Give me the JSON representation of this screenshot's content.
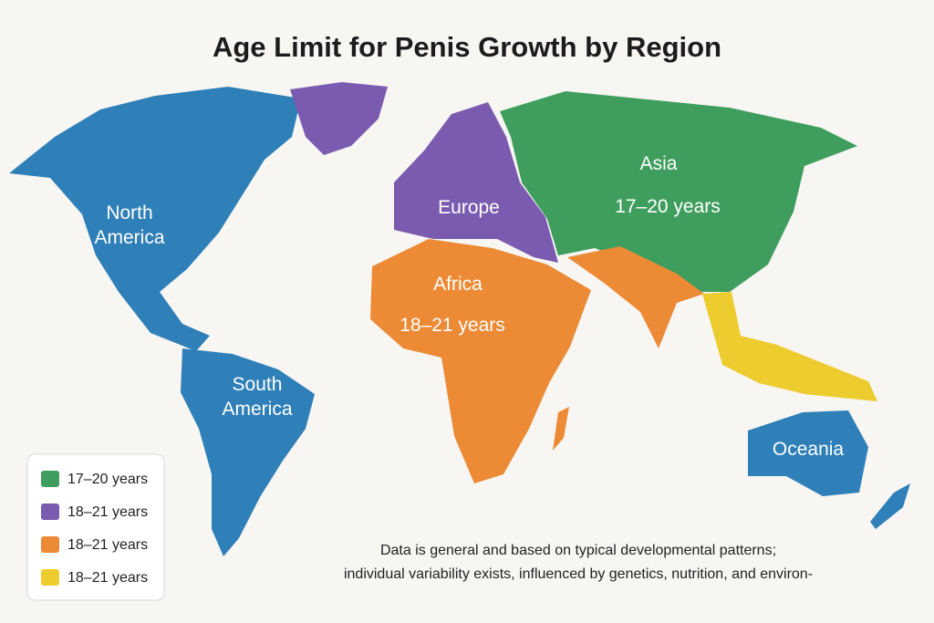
{
  "title": "Age Limit for Penis Growth by Region",
  "regions": {
    "north_america": [
      "North",
      "America"
    ],
    "south_america": [
      "South",
      "America"
    ],
    "europe": [
      "Europe"
    ],
    "africa": [
      "Africa",
      "18–21 years"
    ],
    "asia": [
      "Asia",
      "17–20 years"
    ],
    "oceania": [
      "Oceania"
    ]
  },
  "legend": [
    {
      "label": "17–20 years",
      "color": "#3f9e5e"
    },
    {
      "label": "18–21 years",
      "color": "#7b5bb0"
    },
    {
      "label": "18–21 years",
      "color": "#ec8a35"
    },
    {
      "label": "18–21 years",
      "color": "#edcc2f"
    }
  ],
  "note": [
    "Data is general and based on typical developmental patterns;",
    "individual variability exists, influenced by genetics, nutrition, and environ-"
  ]
}
